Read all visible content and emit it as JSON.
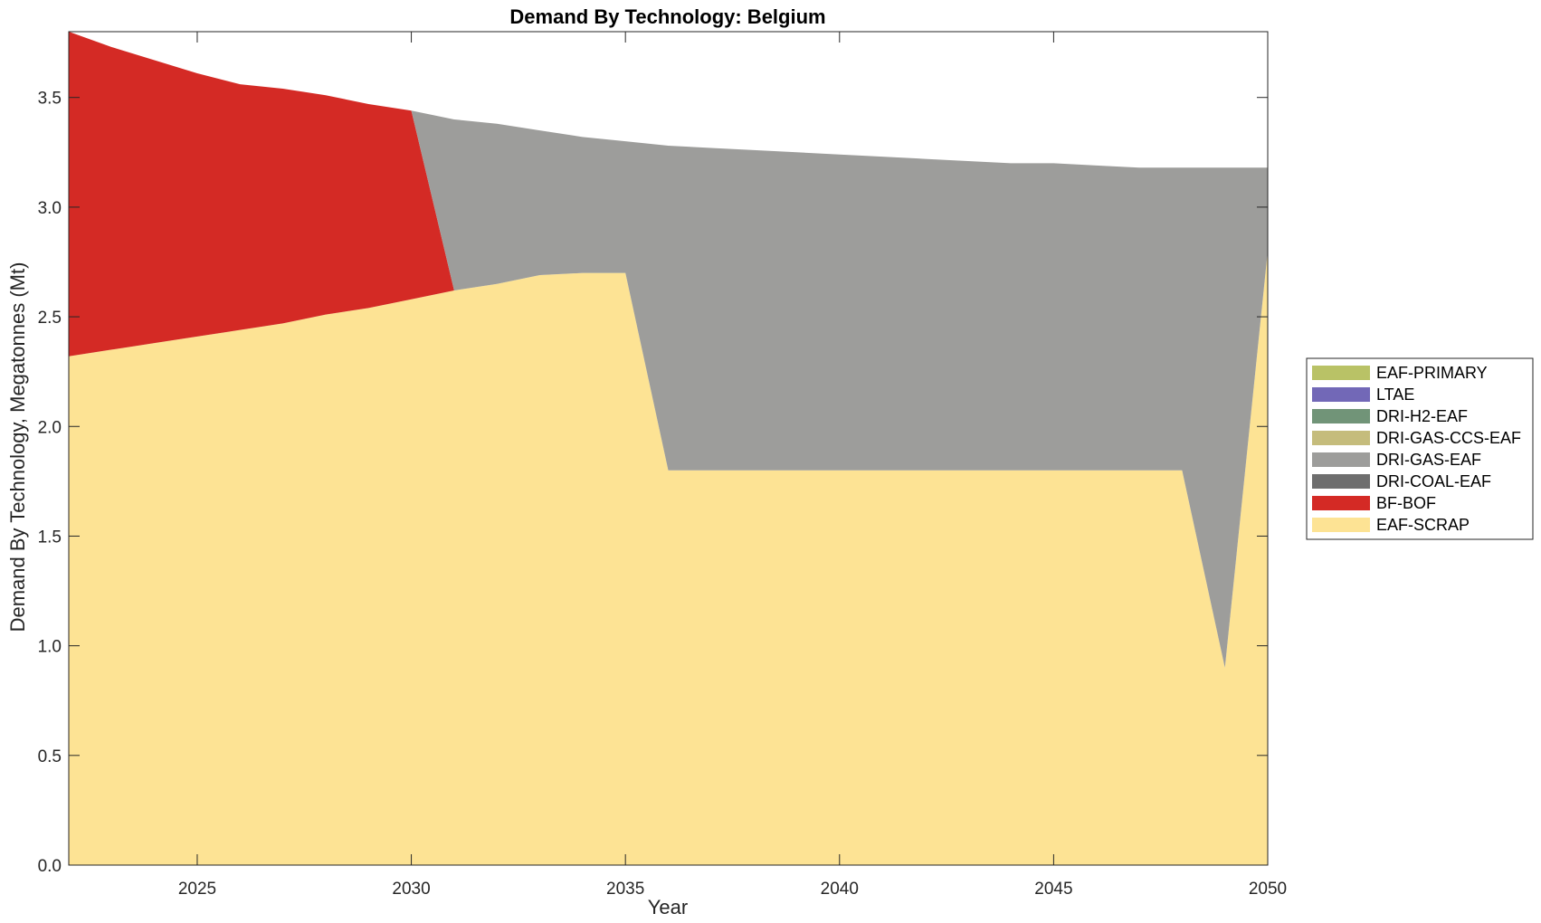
{
  "chart_data": {
    "type": "area",
    "stacked": true,
    "title": "Demand By Technology: Belgium",
    "xlabel": "Year",
    "ylabel": "Demand By Technology, Megatonnes (Mt)",
    "xlim": [
      2022,
      2050
    ],
    "ylim": [
      0,
      3.8
    ],
    "xticks": [
      2025,
      2030,
      2035,
      2040,
      2045,
      2050
    ],
    "yticks": [
      0.0,
      0.5,
      1.0,
      1.5,
      2.0,
      2.5,
      3.0,
      3.5
    ],
    "ytick_labels": [
      "0.0",
      "0.5",
      "1.0",
      "1.5",
      "2.0",
      "2.5",
      "3.0",
      "3.5"
    ],
    "grid": false,
    "legend_position": "right",
    "x": [
      2022,
      2023,
      2024,
      2025,
      2026,
      2027,
      2028,
      2029,
      2030,
      2031,
      2032,
      2033,
      2034,
      2035,
      2036,
      2037,
      2038,
      2039,
      2040,
      2041,
      2042,
      2043,
      2044,
      2045,
      2046,
      2047,
      2048,
      2049,
      2050
    ],
    "series": [
      {
        "name": "EAF-SCRAP",
        "color": "#FDE394",
        "values": [
          2.32,
          2.35,
          2.38,
          2.41,
          2.44,
          2.47,
          2.51,
          2.54,
          2.58,
          2.62,
          2.65,
          2.69,
          2.7,
          2.7,
          1.8,
          1.8,
          1.8,
          1.8,
          1.8,
          1.8,
          1.8,
          1.8,
          1.8,
          1.8,
          1.8,
          1.8,
          1.8,
          0.9,
          2.8
        ]
      },
      {
        "name": "BF-BOF",
        "color": "#D42A25",
        "values": [
          1.48,
          1.38,
          1.29,
          1.2,
          1.12,
          1.07,
          1.0,
          0.93,
          0.86,
          0,
          0,
          0,
          0,
          0,
          0,
          0,
          0,
          0,
          0,
          0,
          0,
          0,
          0,
          0,
          0,
          0,
          0,
          0,
          0
        ]
      },
      {
        "name": "DRI-COAL-EAF",
        "color": "#6E6E6E",
        "values": [
          0,
          0,
          0,
          0,
          0,
          0,
          0,
          0,
          0,
          0,
          0,
          0,
          0,
          0,
          0,
          0,
          0,
          0,
          0,
          0,
          0,
          0,
          0,
          0,
          0,
          0,
          0,
          0,
          0
        ]
      },
      {
        "name": "DRI-GAS-EAF",
        "color": "#9D9D9B",
        "values": [
          0,
          0,
          0,
          0,
          0,
          0,
          0,
          0,
          0,
          0.78,
          0.73,
          0.66,
          0.62,
          0.6,
          1.48,
          1.47,
          1.46,
          1.45,
          1.44,
          1.43,
          1.42,
          1.41,
          1.4,
          1.4,
          1.39,
          1.38,
          1.38,
          2.28,
          0.38
        ]
      },
      {
        "name": "DRI-GAS-CCS-EAF",
        "color": "#C5BC7C",
        "values": [
          0,
          0,
          0,
          0,
          0,
          0,
          0,
          0,
          0,
          0,
          0,
          0,
          0,
          0,
          0,
          0,
          0,
          0,
          0,
          0,
          0,
          0,
          0,
          0,
          0,
          0,
          0,
          0,
          0
        ]
      },
      {
        "name": "DRI-H2-EAF",
        "color": "#719478",
        "values": [
          0,
          0,
          0,
          0,
          0,
          0,
          0,
          0,
          0,
          0,
          0,
          0,
          0,
          0,
          0,
          0,
          0,
          0,
          0,
          0,
          0,
          0,
          0,
          0,
          0,
          0,
          0,
          0,
          0
        ]
      },
      {
        "name": "LTAE",
        "color": "#7268B7",
        "values": [
          0,
          0,
          0,
          0,
          0,
          0,
          0,
          0,
          0,
          0,
          0,
          0,
          0,
          0,
          0,
          0,
          0,
          0,
          0,
          0,
          0,
          0,
          0,
          0,
          0,
          0,
          0,
          0,
          0
        ]
      },
      {
        "name": "EAF-PRIMARY",
        "color": "#B9C266",
        "values": [
          0,
          0,
          0,
          0,
          0,
          0,
          0,
          0,
          0,
          0,
          0,
          0,
          0,
          0,
          0,
          0,
          0,
          0,
          0,
          0,
          0,
          0,
          0,
          0,
          0,
          0,
          0,
          0,
          0
        ]
      }
    ],
    "legend_order": [
      "EAF-PRIMARY",
      "LTAE",
      "DRI-H2-EAF",
      "DRI-GAS-CCS-EAF",
      "DRI-GAS-EAF",
      "DRI-COAL-EAF",
      "BF-BOF",
      "EAF-SCRAP"
    ]
  }
}
